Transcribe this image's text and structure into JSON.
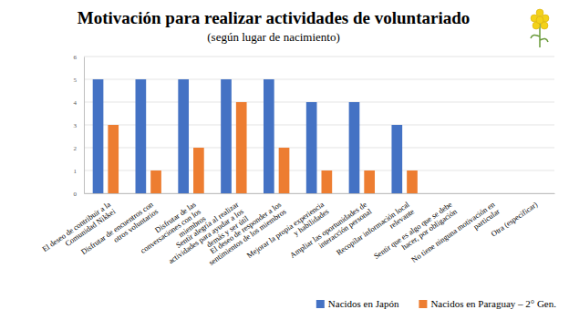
{
  "chart_data": {
    "type": "bar",
    "title": "Motivación para realizar actividades de voluntariado",
    "subtitle": "(según lugar de nacimiento)",
    "categories": [
      "El deseo de contribuir a la Comunidad Nikkei",
      "Disfrutar de encuentros con otros voluntarios",
      "Disfrutar de las conversaciones con los miembros",
      "Sentir alegría al realizar actividades para ayudar a los demás y ser útil",
      "El deseo de responder a los sentimientos de los miembros",
      "Mejorar la propia experiencia y habilidades",
      "Ampliar las oportunidades de interacción personal",
      "Recopilar información local relevante",
      "Sentir que es algo que se debe hacer, por obligación",
      "No tiene ninguna motivación en particular",
      "Otra (especificar)"
    ],
    "series": [
      {
        "name": "Nacidos en Japón",
        "color": "#4472c4",
        "values": [
          5,
          5,
          5,
          5,
          5,
          4,
          4,
          3,
          0,
          0,
          0
        ]
      },
      {
        "name": "Nacidos en Paraguay – 2° Gen.",
        "color": "#ed7d31",
        "values": [
          3,
          1,
          2,
          4,
          2,
          1,
          1,
          1,
          0,
          0,
          0
        ]
      }
    ],
    "ylim": [
      0,
      6
    ],
    "yticks": [
      0,
      1,
      2,
      3,
      4,
      5,
      6
    ],
    "grid": true,
    "legend": "bottom-right"
  }
}
